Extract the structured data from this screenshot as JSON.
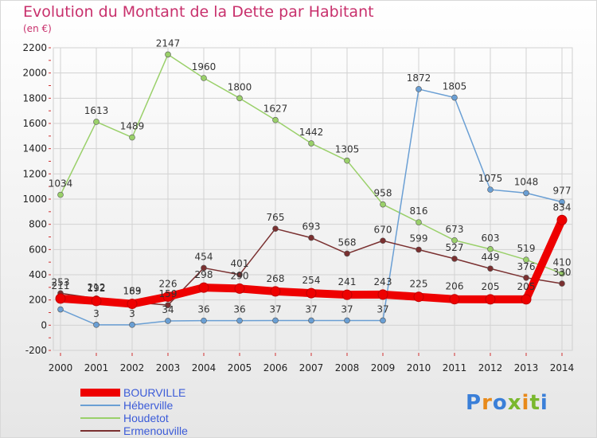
{
  "header": {
    "title": "Evolution du Montant de la Dette par Habitant",
    "subtitle": "(en €)"
  },
  "brand": {
    "letters": [
      "P",
      "r",
      "o",
      "x",
      "i",
      "t",
      "i"
    ],
    "colors": [
      "#3a7fd8",
      "#e88a1a",
      "#3a7fd8",
      "#7ab82e",
      "#e88a1a",
      "#7ab82e",
      "#3a7fd8"
    ]
  },
  "chart_data": {
    "type": "line",
    "x": [
      2000,
      2001,
      2002,
      2003,
      2004,
      2005,
      2006,
      2007,
      2008,
      2009,
      2010,
      2011,
      2012,
      2013,
      2014
    ],
    "xticks": [
      "2000",
      "2001",
      "2002",
      "2003",
      "2004",
      "2005",
      "2006",
      "2007",
      "2008",
      "2009",
      "2010",
      "2011",
      "2012",
      "2013",
      "2014"
    ],
    "yticks": [
      "-200",
      "0",
      "200",
      "400",
      "600",
      "800",
      "1000",
      "1200",
      "1400",
      "1600",
      "1800",
      "2000",
      "2200"
    ],
    "ylim": [
      -200,
      2200
    ],
    "grid": true,
    "legend_position": "bottom-left",
    "series": [
      {
        "name": "BOURVILLE",
        "color": "#ee0000",
        "values": [
          211,
          192,
          169,
          226,
          298,
          290,
          268,
          254,
          241,
          243,
          225,
          206,
          205,
          205,
          834
        ],
        "labels": [
          "211",
          "192",
          "169",
          "226",
          "298",
          "290",
          "268",
          "254",
          "241",
          "243",
          "225",
          "206",
          "205",
          "205",
          "834"
        ]
      },
      {
        "name": "Héberville",
        "color": "#6a9fd4",
        "values": [
          125,
          3,
          3,
          34,
          36,
          36,
          37,
          37,
          37,
          37,
          1872,
          1805,
          1075,
          1048,
          977
        ],
        "labels": [
          "",
          "3",
          "3",
          "34",
          "36",
          "36",
          "37",
          "37",
          "37",
          "37",
          "1872",
          "1805",
          "1075",
          "1048",
          "977"
        ]
      },
      {
        "name": "Houdetot",
        "color": "#9ad06a",
        "values": [
          1034,
          1613,
          1489,
          2147,
          1960,
          1800,
          1627,
          1442,
          1305,
          958,
          816,
          673,
          603,
          519,
          410
        ],
        "labels": [
          "1034",
          "1613",
          "1489",
          "2147",
          "1960",
          "1800",
          "1627",
          "1442",
          "1305",
          "958",
          "816",
          "673",
          "603",
          "519",
          "410"
        ]
      },
      {
        "name": "Ermenouville",
        "color": "#7a3030",
        "values": [
          253,
          212,
          183,
          159,
          454,
          401,
          765,
          693,
          568,
          670,
          599,
          527,
          449,
          376,
          330
        ],
        "labels": [
          "253",
          "212",
          "183",
          "159",
          "454",
          "401",
          "765",
          "693",
          "568",
          "670",
          "599",
          "527",
          "449",
          "376",
          "330"
        ]
      }
    ]
  }
}
